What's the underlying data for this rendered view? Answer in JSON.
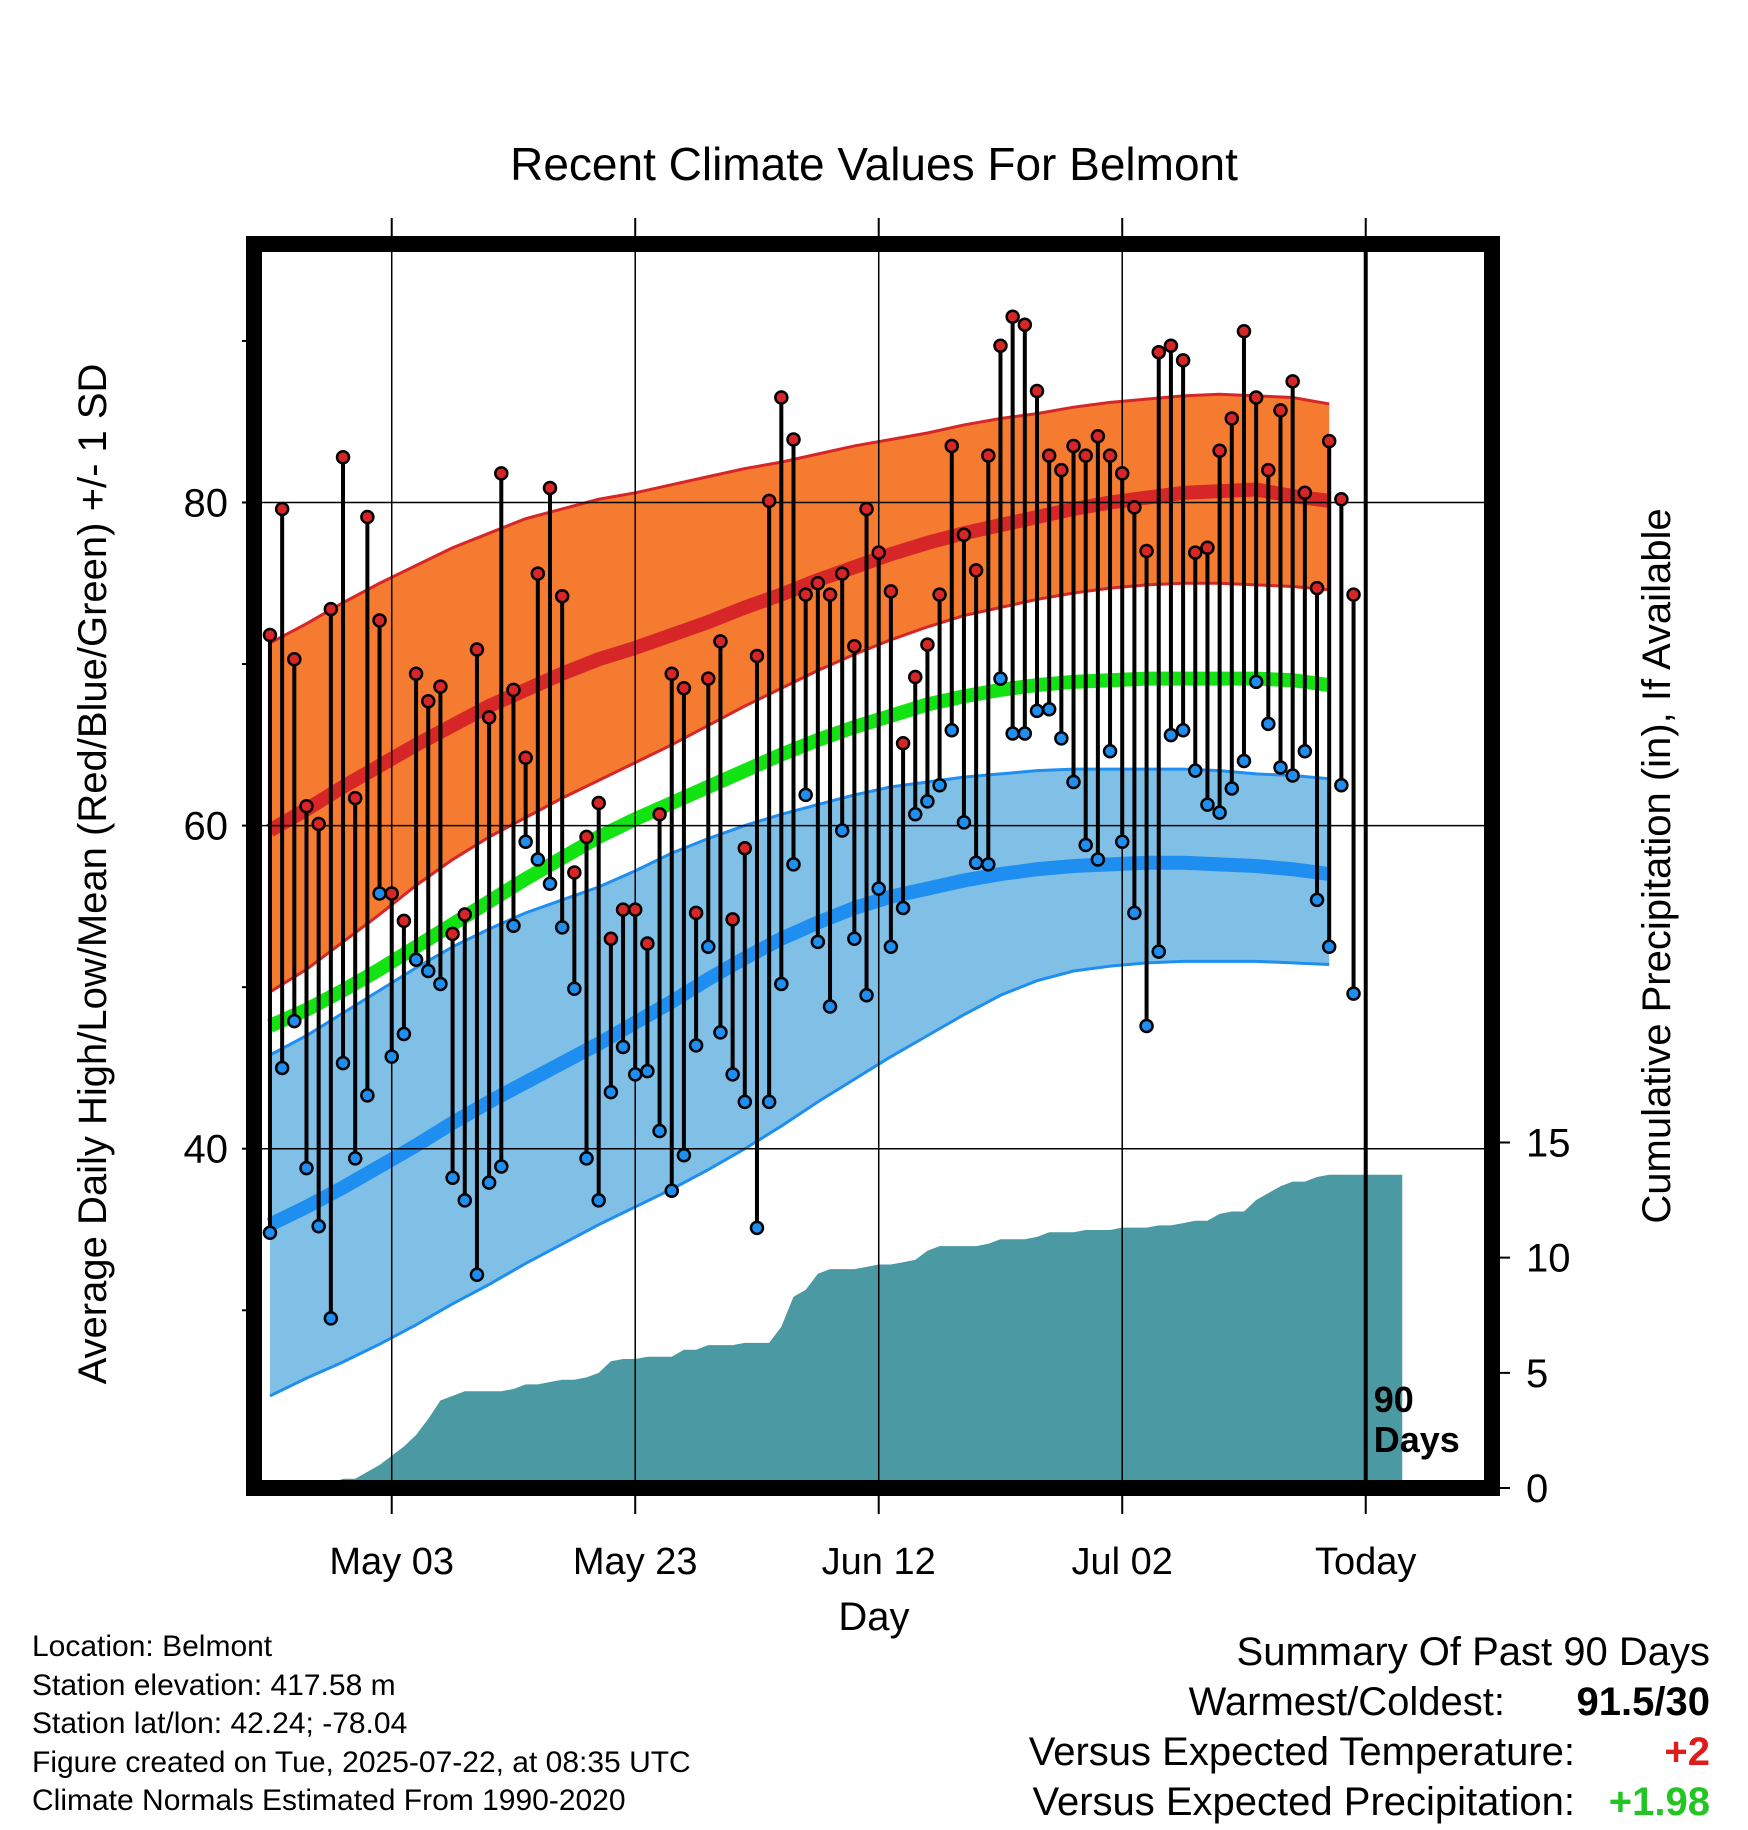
{
  "chart_data": {
    "type": "line",
    "title": "Recent Climate Values For Belmont",
    "xlabel": "Day",
    "ylabel": "Average Daily High/Low/Mean (Red/Blue/Green) +/- 1 SD",
    "y2label": "Cumulative Precipitation (in), If Available",
    "x_ticks": [
      "May 03",
      "May 23",
      "Jun 12",
      "Jul 02",
      "Today"
    ],
    "x_tick_day_index": [
      11,
      31,
      51,
      71,
      91
    ],
    "ylim": [
      19,
      96
    ],
    "y_ticks": [
      40,
      60,
      80
    ],
    "y_minor_ticks": [
      30,
      50,
      70,
      90
    ],
    "y2lim": [
      0,
      54
    ],
    "y2_ticks": [
      0,
      5,
      10,
      15
    ],
    "grid": true,
    "today_marker": {
      "label_line1": "90",
      "label_line2": "Days"
    },
    "day_index_note": "days 1..90 are observed days before today; day 91 = Today",
    "daily_high": [
      71.8,
      79.6,
      70.3,
      61.2,
      60.1,
      73.4,
      82.8,
      61.7,
      79.1,
      72.7,
      55.8,
      54.1,
      69.4,
      67.7,
      68.6,
      53.3,
      54.5,
      70.9,
      66.7,
      81.8,
      68.4,
      64.2,
      75.6,
      80.9,
      74.2,
      57.1,
      59.3,
      61.4,
      53.0,
      54.8,
      54.8,
      52.7,
      60.7,
      69.4,
      68.5,
      54.6,
      69.1,
      71.4,
      54.2,
      58.6,
      70.5,
      80.1,
      86.5,
      83.9,
      74.3,
      75.0,
      74.3,
      75.6,
      71.1,
      79.6,
      76.9,
      74.5,
      65.1,
      69.2,
      71.2,
      74.3,
      83.5,
      78.0,
      75.8,
      82.9,
      89.7,
      91.5,
      91.0,
      86.9,
      82.9,
      82.0,
      83.5,
      82.9,
      84.1,
      82.9,
      81.8,
      79.7,
      77.0,
      89.3,
      89.7,
      88.8,
      76.9,
      77.2,
      83.2,
      85.2,
      90.6,
      86.5,
      82.0,
      85.7,
      87.5,
      80.6,
      74.7,
      83.8,
      80.2,
      74.3
    ],
    "daily_low": [
      34.8,
      45.0,
      47.9,
      38.8,
      35.2,
      29.5,
      45.3,
      39.4,
      43.3,
      55.8,
      45.7,
      47.1,
      51.7,
      51.0,
      50.2,
      38.2,
      36.8,
      32.2,
      37.9,
      38.9,
      53.8,
      59.0,
      57.9,
      56.4,
      53.7,
      49.9,
      39.4,
      36.8,
      43.5,
      46.3,
      44.6,
      44.8,
      41.1,
      37.4,
      39.6,
      46.4,
      52.5,
      47.2,
      44.6,
      42.9,
      35.1,
      42.9,
      50.2,
      57.6,
      61.9,
      52.8,
      48.8,
      59.7,
      53.0,
      49.5,
      56.1,
      52.5,
      54.9,
      60.7,
      61.5,
      62.5,
      65.9,
      60.2,
      57.7,
      57.6,
      69.1,
      65.7,
      65.7,
      67.1,
      67.2,
      65.4,
      62.7,
      58.8,
      57.9,
      64.6,
      59.0,
      54.6,
      47.6,
      52.2,
      65.6,
      65.9,
      63.4,
      61.3,
      60.8,
      62.3,
      64.0,
      68.9,
      66.3,
      63.6,
      63.1,
      64.6,
      55.4,
      52.5,
      62.5,
      49.6
    ],
    "normal_high": [
      59.7,
      61.0,
      62.4,
      63.7,
      65.0,
      66.2,
      67.4,
      68.4,
      69.4,
      70.3,
      71.0,
      71.8,
      72.6,
      73.5,
      74.3,
      75.2,
      76.0,
      76.8,
      77.5,
      78.1,
      78.6,
      79.1,
      79.6,
      80.0,
      80.3,
      80.6,
      80.7,
      80.8,
      80.4,
      80.1
    ],
    "normal_high_plus_sd": [
      71.3,
      72.5,
      73.8,
      75.0,
      76.1,
      77.2,
      78.1,
      79.0,
      79.6,
      80.2,
      80.6,
      81.1,
      81.6,
      82.1,
      82.5,
      83.0,
      83.5,
      83.9,
      84.3,
      84.8,
      85.2,
      85.5,
      85.9,
      86.2,
      86.4,
      86.6,
      86.7,
      86.6,
      86.5,
      86.1
    ],
    "normal_high_minus_sd": [
      49.7,
      51.1,
      52.8,
      54.5,
      56.3,
      57.9,
      59.3,
      60.5,
      61.7,
      62.8,
      63.9,
      65.0,
      66.2,
      67.4,
      68.5,
      69.6,
      70.6,
      71.5,
      72.3,
      73.0,
      73.5,
      74.0,
      74.4,
      74.7,
      74.9,
      75.0,
      75.0,
      74.9,
      74.8,
      74.6
    ],
    "normal_mean": [
      47.6,
      48.6,
      49.8,
      51.1,
      52.5,
      53.9,
      55.3,
      56.7,
      58.0,
      59.3,
      60.4,
      61.4,
      62.4,
      63.4,
      64.4,
      65.3,
      66.1,
      66.8,
      67.5,
      68.0,
      68.4,
      68.7,
      68.9,
      69.0,
      69.1,
      69.1,
      69.1,
      69.1,
      69.0,
      68.7
    ],
    "normal_low": [
      35.3,
      36.4,
      37.6,
      38.9,
      40.2,
      41.6,
      42.9,
      44.1,
      45.3,
      46.5,
      47.8,
      49.1,
      50.5,
      51.8,
      53.0,
      54.0,
      54.9,
      55.6,
      56.1,
      56.6,
      57.0,
      57.3,
      57.5,
      57.6,
      57.7,
      57.7,
      57.6,
      57.5,
      57.3,
      57.0
    ],
    "normal_low_plus_sd": [
      45.8,
      47.0,
      48.4,
      49.8,
      51.2,
      52.5,
      53.6,
      54.6,
      55.4,
      56.2,
      57.2,
      58.3,
      59.2,
      60.0,
      60.7,
      61.3,
      61.9,
      62.4,
      62.7,
      63.0,
      63.2,
      63.4,
      63.5,
      63.5,
      63.5,
      63.5,
      63.4,
      63.2,
      63.1,
      62.9
    ],
    "normal_low_minus_sd": [
      24.7,
      25.8,
      26.8,
      27.9,
      29.1,
      30.4,
      31.6,
      32.9,
      34.1,
      35.3,
      36.4,
      37.5,
      38.7,
      40.0,
      41.4,
      42.9,
      44.3,
      45.7,
      47.0,
      48.3,
      49.5,
      50.4,
      51.0,
      51.3,
      51.5,
      51.6,
      51.6,
      51.6,
      51.5,
      51.4
    ],
    "normals_day_index": [
      1,
      4,
      7,
      10,
      13,
      16,
      19,
      22,
      25,
      28,
      31,
      34,
      37,
      40,
      43,
      46,
      49,
      52,
      55,
      58,
      61,
      64,
      67,
      70,
      73,
      76,
      79,
      82,
      85,
      88
    ],
    "cum_precip_day_index": [
      1,
      4,
      5,
      6,
      7,
      8,
      9,
      10,
      11,
      12,
      13,
      14,
      15,
      16,
      17,
      18,
      19,
      20,
      21,
      22,
      23,
      24,
      25,
      26,
      27,
      28,
      29,
      30,
      31,
      32,
      33,
      34,
      35,
      36,
      37,
      38,
      39,
      40,
      41,
      42,
      43,
      44,
      45,
      46,
      47,
      48,
      49,
      50,
      51,
      52,
      53,
      54,
      55,
      56,
      57,
      58,
      59,
      60,
      61,
      62,
      63,
      64,
      65,
      66,
      67,
      68,
      69,
      70,
      71,
      72,
      73,
      74,
      75,
      76,
      77,
      78,
      79,
      80,
      81,
      82,
      83,
      84,
      85,
      86,
      87,
      88,
      89,
      90,
      91,
      94
    ],
    "cum_precip": [
      0.0,
      0.1,
      0.1,
      0.2,
      0.4,
      0.4,
      0.7,
      1.0,
      1.4,
      1.8,
      2.3,
      3.0,
      3.8,
      4.0,
      4.2,
      4.2,
      4.2,
      4.2,
      4.3,
      4.5,
      4.5,
      4.6,
      4.7,
      4.7,
      4.8,
      5.0,
      5.5,
      5.6,
      5.6,
      5.7,
      5.7,
      5.7,
      6.0,
      6.0,
      6.2,
      6.2,
      6.2,
      6.3,
      6.3,
      6.3,
      7.0,
      8.3,
      8.6,
      9.3,
      9.5,
      9.5,
      9.5,
      9.6,
      9.7,
      9.7,
      9.8,
      9.9,
      10.3,
      10.5,
      10.5,
      10.5,
      10.5,
      10.6,
      10.8,
      10.8,
      10.8,
      10.9,
      11.1,
      11.1,
      11.1,
      11.2,
      11.2,
      11.2,
      11.3,
      11.3,
      11.3,
      11.4,
      11.4,
      11.5,
      11.6,
      11.6,
      11.9,
      12.0,
      12.0,
      12.5,
      12.8,
      13.1,
      13.3,
      13.3,
      13.5,
      13.6,
      13.6,
      13.6,
      13.6,
      13.6
    ]
  },
  "info": {
    "location": "Location: Belmont",
    "elevation": "Station elevation: 417.58 m",
    "latlon": "Station lat/lon: 42.24; -78.04",
    "created": "Figure created on Tue, 2025-07-22, at 08:35 UTC",
    "normals": "Climate Normals Estimated From 1990-2020"
  },
  "summary": {
    "title": "Summary Of Past 90 Days",
    "warmest_coldest_label": "Warmest/Coldest:",
    "warmest_coldest_value": "91.5/30",
    "temp_label": "Versus Expected Temperature:",
    "temp_value": "+2",
    "temp_color": "#e01b1b",
    "precip_label": "Versus Expected Precipitation:",
    "precip_value": "+1.98",
    "precip_color": "#22c522"
  },
  "colors": {
    "high_band": "#f47b30",
    "high_line": "#d62627",
    "low_band": "#80c0e6",
    "low_line": "#1f8ef1",
    "mean_line": "#13e313",
    "precip_fill": "#4b9aa3",
    "high_dot": "#d62627",
    "low_dot": "#1f8ef1"
  }
}
